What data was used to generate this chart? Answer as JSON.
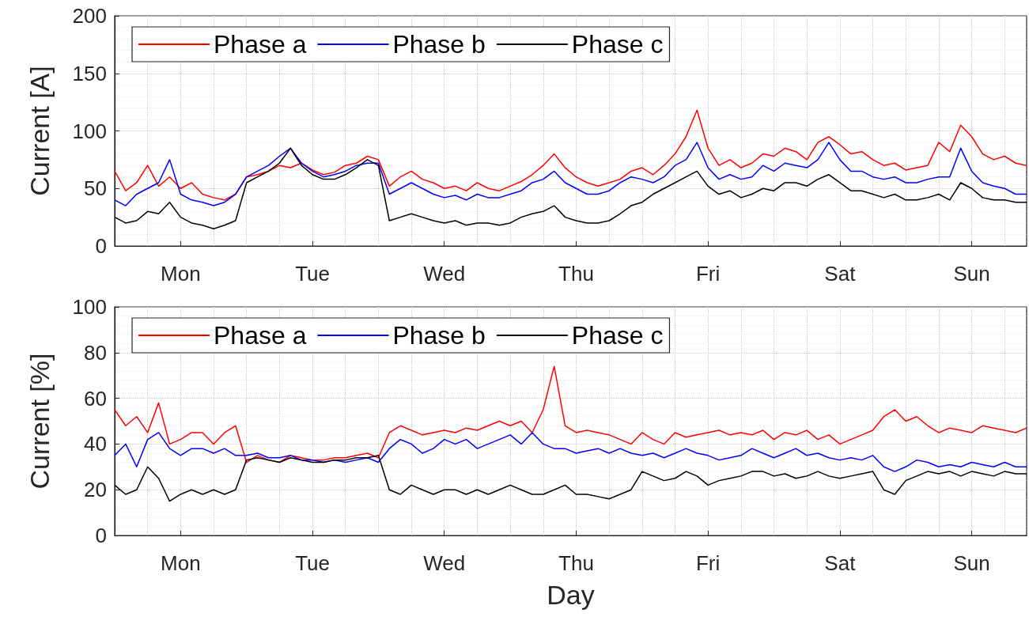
{
  "chart_data": [
    {
      "type": "line",
      "ylabel": "Current [A]",
      "legend": "top left",
      "grid": true,
      "marker": "none",
      "line_style": "solid",
      "ylim": [
        0,
        200
      ],
      "yticks": [
        0,
        50,
        100,
        150,
        200
      ],
      "categories": [
        null,
        null,
        null,
        null,
        null,
        null,
        "Mon",
        null,
        null,
        null,
        null,
        null,
        null,
        null,
        null,
        null,
        null,
        null,
        "Tue",
        null,
        null,
        null,
        null,
        null,
        null,
        null,
        null,
        null,
        null,
        null,
        "Wed",
        null,
        null,
        null,
        null,
        null,
        null,
        null,
        null,
        null,
        null,
        null,
        "Thu",
        null,
        null,
        null,
        null,
        null,
        null,
        null,
        null,
        null,
        null,
        null,
        "Fri",
        null,
        null,
        null,
        null,
        null,
        null,
        null,
        null,
        null,
        null,
        null,
        "Sat",
        null,
        null,
        null,
        null,
        null,
        null,
        null,
        null,
        null,
        null,
        null,
        "Sun",
        null,
        null,
        null,
        null,
        null
      ],
      "series": [
        {
          "name": "Phase a",
          "color": "#ff0000",
          "values": [
            65,
            48,
            55,
            70,
            52,
            60,
            50,
            55,
            45,
            42,
            40,
            45,
            60,
            62,
            65,
            70,
            68,
            72,
            66,
            62,
            64,
            70,
            72,
            78,
            75,
            52,
            60,
            65,
            58,
            55,
            50,
            52,
            48,
            55,
            50,
            48,
            52,
            56,
            62,
            70,
            80,
            68,
            60,
            55,
            52,
            55,
            58,
            65,
            68,
            62,
            70,
            80,
            95,
            118,
            85,
            70,
            75,
            68,
            72,
            80,
            78,
            85,
            82,
            75,
            90,
            95,
            88,
            80,
            82,
            75,
            70,
            72,
            66,
            68,
            70,
            90,
            82,
            105,
            95,
            80,
            75,
            78,
            72,
            70
          ]
        },
        {
          "name": "Phase b",
          "color": "#0000ff",
          "values": [
            40,
            35,
            45,
            50,
            55,
            75,
            45,
            40,
            38,
            35,
            38,
            45,
            60,
            65,
            70,
            78,
            85,
            72,
            65,
            60,
            62,
            65,
            70,
            72,
            72,
            45,
            50,
            55,
            50,
            45,
            42,
            44,
            40,
            45,
            42,
            42,
            45,
            48,
            55,
            58,
            65,
            55,
            50,
            45,
            45,
            48,
            55,
            60,
            58,
            55,
            60,
            70,
            75,
            90,
            68,
            58,
            62,
            58,
            60,
            70,
            65,
            72,
            70,
            68,
            75,
            90,
            75,
            65,
            65,
            60,
            58,
            60,
            55,
            55,
            58,
            60,
            60,
            85,
            65,
            55,
            52,
            50,
            45,
            45
          ]
        },
        {
          "name": "Phase c",
          "color": "#000000",
          "values": [
            25,
            20,
            22,
            30,
            28,
            38,
            25,
            20,
            18,
            15,
            18,
            22,
            55,
            60,
            65,
            72,
            85,
            70,
            62,
            58,
            58,
            62,
            68,
            75,
            70,
            22,
            25,
            28,
            25,
            22,
            20,
            22,
            18,
            20,
            20,
            18,
            20,
            25,
            28,
            30,
            35,
            25,
            22,
            20,
            20,
            22,
            28,
            35,
            38,
            45,
            50,
            55,
            60,
            65,
            52,
            45,
            48,
            42,
            45,
            50,
            48,
            55,
            55,
            52,
            58,
            62,
            55,
            48,
            48,
            45,
            42,
            45,
            40,
            40,
            42,
            45,
            40,
            55,
            50,
            42,
            40,
            40,
            38,
            38
          ]
        }
      ]
    },
    {
      "type": "line",
      "xlabel": "Day",
      "ylabel": "Current [%]",
      "legend": "top left",
      "grid": true,
      "marker": "none",
      "line_style": "solid",
      "ylim": [
        0,
        100
      ],
      "yticks": [
        0,
        20,
        40,
        60,
        80,
        100
      ],
      "categories": [
        null,
        null,
        null,
        null,
        null,
        null,
        "Mon",
        null,
        null,
        null,
        null,
        null,
        null,
        null,
        null,
        null,
        null,
        null,
        "Tue",
        null,
        null,
        null,
        null,
        null,
        null,
        null,
        null,
        null,
        null,
        null,
        "Wed",
        null,
        null,
        null,
        null,
        null,
        null,
        null,
        null,
        null,
        null,
        null,
        "Thu",
        null,
        null,
        null,
        null,
        null,
        null,
        null,
        null,
        null,
        null,
        null,
        "Fri",
        null,
        null,
        null,
        null,
        null,
        null,
        null,
        null,
        null,
        null,
        null,
        "Sat",
        null,
        null,
        null,
        null,
        null,
        null,
        null,
        null,
        null,
        null,
        null,
        "Sun",
        null,
        null,
        null,
        null,
        null
      ],
      "series": [
        {
          "name": "Phase a",
          "color": "#ff0000",
          "values": [
            55,
            48,
            52,
            45,
            58,
            40,
            42,
            45,
            45,
            40,
            45,
            48,
            32,
            35,
            33,
            32,
            35,
            34,
            33,
            33,
            34,
            34,
            35,
            36,
            34,
            45,
            48,
            46,
            44,
            45,
            46,
            45,
            47,
            46,
            48,
            50,
            48,
            50,
            45,
            55,
            74,
            48,
            45,
            46,
            45,
            44,
            42,
            40,
            45,
            42,
            40,
            45,
            43,
            44,
            45,
            46,
            44,
            45,
            44,
            46,
            42,
            45,
            44,
            46,
            42,
            44,
            40,
            42,
            44,
            46,
            52,
            55,
            50,
            52,
            48,
            45,
            47,
            46,
            45,
            48,
            47,
            46,
            45,
            47
          ]
        },
        {
          "name": "Phase b",
          "color": "#0000ff",
          "values": [
            35,
            40,
            30,
            42,
            45,
            38,
            35,
            38,
            38,
            36,
            38,
            35,
            35,
            36,
            34,
            34,
            35,
            33,
            33,
            32,
            33,
            32,
            33,
            34,
            32,
            38,
            42,
            40,
            36,
            38,
            42,
            40,
            42,
            38,
            40,
            42,
            44,
            40,
            45,
            40,
            38,
            38,
            36,
            37,
            38,
            36,
            38,
            36,
            35,
            36,
            34,
            36,
            38,
            36,
            35,
            33,
            34,
            35,
            38,
            36,
            34,
            36,
            38,
            35,
            36,
            34,
            33,
            34,
            33,
            35,
            30,
            28,
            30,
            33,
            32,
            30,
            31,
            30,
            32,
            31,
            30,
            32,
            30,
            30
          ]
        },
        {
          "name": "Phase c",
          "color": "#000000",
          "values": [
            22,
            18,
            20,
            30,
            25,
            15,
            18,
            20,
            18,
            20,
            18,
            20,
            33,
            34,
            33,
            32,
            34,
            33,
            32,
            32,
            33,
            33,
            34,
            34,
            35,
            20,
            18,
            22,
            20,
            18,
            20,
            20,
            18,
            20,
            18,
            20,
            22,
            20,
            18,
            18,
            20,
            22,
            18,
            18,
            17,
            16,
            18,
            20,
            28,
            26,
            24,
            25,
            28,
            26,
            22,
            24,
            25,
            26,
            28,
            28,
            26,
            27,
            25,
            26,
            28,
            26,
            25,
            26,
            27,
            28,
            20,
            18,
            24,
            26,
            28,
            27,
            28,
            26,
            28,
            27,
            26,
            28,
            27,
            27
          ]
        }
      ]
    }
  ]
}
